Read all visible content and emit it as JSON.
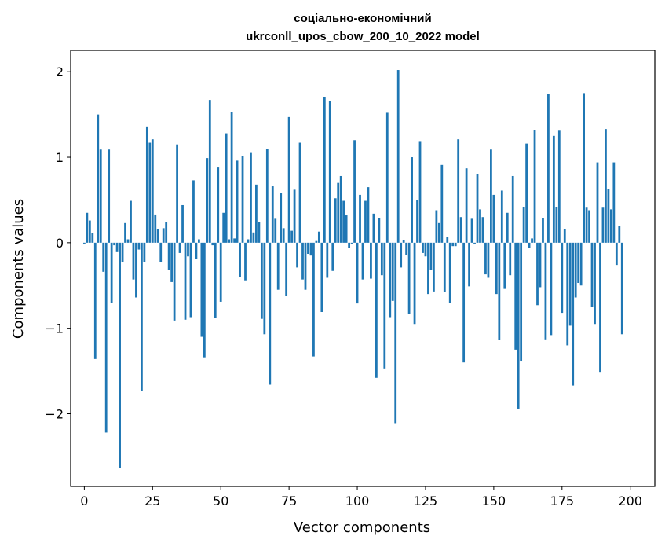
{
  "chart_data": {
    "type": "bar",
    "title_line1": "соціально-економічний",
    "title_line2": "ukrconll_upos_cbow_200_10_2022 model",
    "xlabel": "Vector components",
    "ylabel": "Components values",
    "xlim": [
      -5,
      209
    ],
    "ylim": [
      -2.85,
      2.25
    ],
    "x_ticks": [
      0,
      25,
      50,
      75,
      100,
      125,
      150,
      175,
      200
    ],
    "x_tick_labels": [
      "0",
      "25",
      "50",
      "75",
      "100",
      "125",
      "150",
      "175",
      "200"
    ],
    "y_ticks": [
      -2,
      -1,
      0,
      1,
      2
    ],
    "y_tick_labels": [
      "−2",
      "−1",
      "0",
      "1",
      "2"
    ],
    "bar_color": "#1f77b4",
    "grid": false,
    "values": [
      -0.01,
      0.35,
      0.26,
      0.11,
      -1.36,
      1.5,
      1.09,
      -0.34,
      -2.22,
      1.09,
      -0.7,
      -0.03,
      -0.11,
      -2.63,
      -0.23,
      0.23,
      0.04,
      0.49,
      -0.43,
      -0.64,
      -0.08,
      -1.73,
      -0.23,
      1.36,
      1.17,
      1.21,
      0.33,
      0.16,
      -0.23,
      0.17,
      0.24,
      -0.32,
      -0.46,
      -0.91,
      1.15,
      -0.12,
      0.44,
      -0.9,
      -0.16,
      -0.87,
      0.73,
      -0.19,
      0.04,
      -1.1,
      -1.34,
      0.99,
      1.67,
      -0.03,
      -0.88,
      0.88,
      -0.69,
      0.35,
      1.28,
      0.04,
      1.53,
      0.05,
      0.96,
      -0.4,
      1.01,
      -0.44,
      0.04,
      1.05,
      0.12,
      0.68,
      0.24,
      -0.89,
      -1.07,
      1.1,
      -1.66,
      0.66,
      0.28,
      -0.55,
      0.58,
      0.17,
      -0.62,
      1.47,
      0.14,
      0.62,
      -0.29,
      1.17,
      -0.43,
      -0.55,
      -0.13,
      -0.15,
      -1.33,
      0.02,
      0.13,
      -0.81,
      1.7,
      -0.41,
      1.66,
      -0.33,
      0.52,
      0.7,
      0.78,
      0.49,
      0.32,
      -0.06,
      -0.01,
      1.2,
      -0.71,
      0.56,
      -0.43,
      0.49,
      0.65,
      -0.42,
      0.34,
      -1.58,
      0.29,
      -0.38,
      -1.47,
      1.52,
      -0.87,
      -0.68,
      -2.11,
      2.02,
      -0.29,
      0.03,
      -0.14,
      -0.83,
      1.0,
      -0.95,
      0.5,
      1.18,
      -0.12,
      -0.16,
      -0.6,
      -0.32,
      -0.57,
      0.38,
      0.23,
      0.91,
      -0.58,
      0.07,
      -0.7,
      -0.04,
      -0.04,
      1.21,
      0.3,
      -1.4,
      0.87,
      -0.51,
      0.28,
      -0.01,
      0.8,
      0.39,
      0.3,
      -0.37,
      -0.41,
      1.09,
      0.56,
      -0.6,
      -1.14,
      0.61,
      -0.54,
      0.35,
      -0.38,
      0.78,
      -1.25,
      -1.94,
      -1.38,
      0.42,
      1.16,
      -0.06,
      0.05,
      1.32,
      -0.73,
      -0.52,
      0.29,
      -1.13,
      1.74,
      -1.08,
      1.25,
      0.42,
      1.31,
      -0.82,
      0.16,
      -1.2,
      -0.97,
      -1.67,
      -0.64,
      -0.47,
      -0.5,
      1.75,
      0.41,
      0.38,
      -0.75,
      -0.95,
      0.94,
      -1.51,
      0.41,
      1.33,
      0.63,
      0.39,
      0.94,
      -0.26,
      0.2,
      -1.07
    ]
  }
}
